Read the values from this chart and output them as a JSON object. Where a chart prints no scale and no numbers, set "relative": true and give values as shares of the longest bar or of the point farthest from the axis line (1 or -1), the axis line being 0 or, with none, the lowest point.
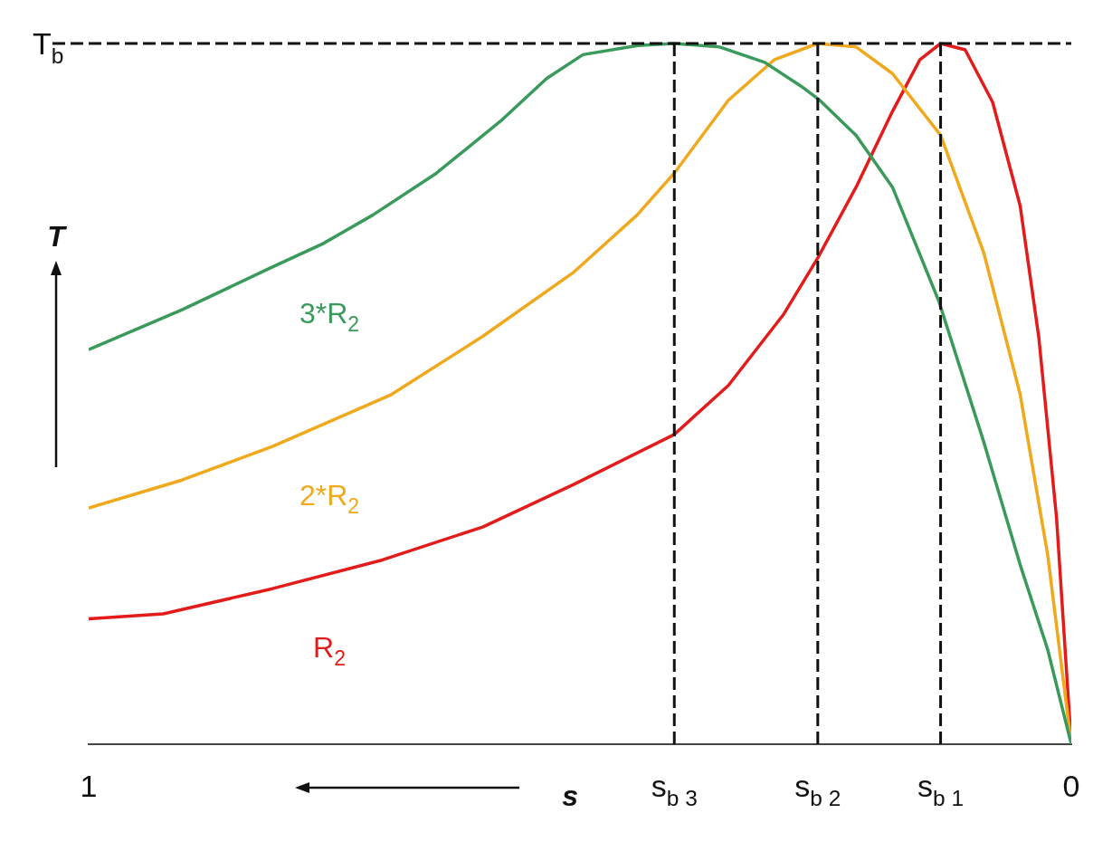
{
  "chart_data": {
    "type": "line",
    "relative": true,
    "xlabel": "s",
    "ylabel": "T",
    "xlim": [
      1,
      0
    ],
    "xticks": [
      1,
      {
        "value": 0.404,
        "label": "s$_{b 3}$"
      },
      {
        "value": 0.258,
        "label": "s$_{b 2}$"
      },
      {
        "value": 0.133,
        "label": "s$_{b 1}$"
      },
      0
    ],
    "ref_lines": [
      {
        "axis": "y",
        "value": 1,
        "label": "T$_{b}$",
        "line_style": "dashed",
        "color": "#111111"
      },
      {
        "axis": "x",
        "value": 0.404,
        "line_style": "dashed",
        "color": "#111111"
      },
      {
        "axis": "x",
        "value": 0.258,
        "line_style": "dashed",
        "color": "#111111"
      },
      {
        "axis": "x",
        "value": 0.133,
        "line_style": "dashed",
        "color": "#111111"
      }
    ],
    "legend": false,
    "marker": "none",
    "line_style": "solid",
    "series": [
      {
        "name": "3*R$_{2}$",
        "color": "#3a9a5b",
        "x": [
          1,
          0.905,
          0.813,
          0.762,
          0.711,
          0.646,
          0.581,
          0.534,
          0.497,
          0.441,
          0.404,
          0.358,
          0.312,
          0.275,
          0.256,
          0.219,
          0.182,
          0.135,
          0.089,
          0.052,
          0.024,
          0
        ],
        "values": [
          0.563,
          0.62,
          0.681,
          0.714,
          0.755,
          0.815,
          0.889,
          0.95,
          0.984,
          0.997,
          1,
          0.995,
          0.973,
          0.939,
          0.919,
          0.869,
          0.795,
          0.633,
          0.431,
          0.256,
          0.135,
          0
        ]
      },
      {
        "name": "2*R$_{2}$",
        "color": "#f0a81c",
        "x": [
          1,
          0.905,
          0.813,
          0.692,
          0.599,
          0.506,
          0.442,
          0.404,
          0.349,
          0.302,
          0.258,
          0.219,
          0.182,
          0.133,
          0.089,
          0.052,
          0.024,
          0
        ],
        "values": [
          0.337,
          0.377,
          0.425,
          0.499,
          0.582,
          0.674,
          0.755,
          0.815,
          0.919,
          0.977,
          1,
          0.995,
          0.957,
          0.869,
          0.701,
          0.499,
          0.27,
          0
        ]
      },
      {
        "name": "R$_{2}$",
        "color": "#e31b1b",
        "x": [
          1,
          0.924,
          0.813,
          0.701,
          0.599,
          0.506,
          0.404,
          0.349,
          0.293,
          0.258,
          0.219,
          0.182,
          0.154,
          0.133,
          0.108,
          0.08,
          0.052,
          0.033,
          0.015,
          0
        ],
        "values": [
          0.179,
          0.186,
          0.222,
          0.263,
          0.31,
          0.371,
          0.442,
          0.512,
          0.613,
          0.694,
          0.795,
          0.903,
          0.977,
          1,
          0.991,
          0.916,
          0.768,
          0.58,
          0.323,
          0
        ]
      }
    ]
  }
}
